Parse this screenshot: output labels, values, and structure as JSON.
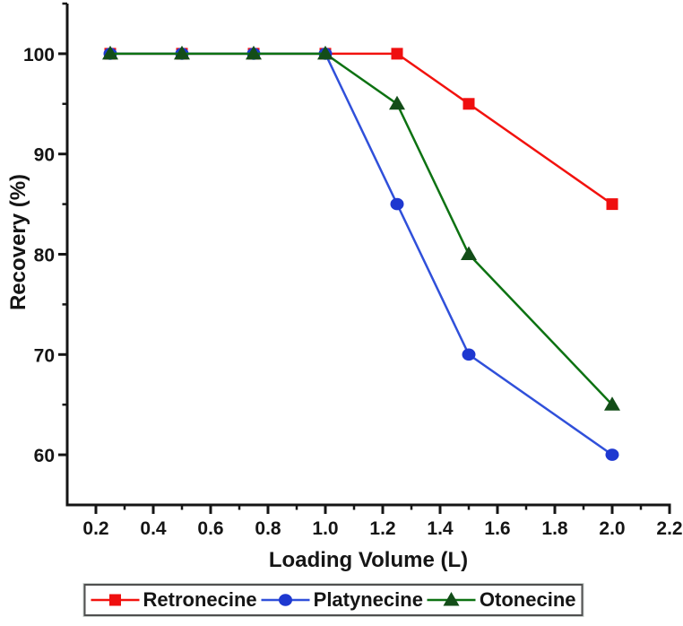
{
  "chart_data": {
    "type": "line",
    "title": "",
    "xlabel": "Loading Volume (L)",
    "ylabel": "Recovery (%)",
    "x": [
      0.25,
      0.5,
      0.75,
      1.0,
      1.25,
      1.5,
      2.0
    ],
    "series": [
      {
        "name": "Retronecine",
        "marker": "square",
        "line_color": "#f2120e",
        "marker_color": "#ef0f0f",
        "values": [
          100,
          100,
          100,
          100,
          100,
          95,
          85
        ]
      },
      {
        "name": "Platynecine",
        "marker": "circle",
        "line_color": "#3050da",
        "marker_color": "#1e38d0",
        "values": [
          100,
          100,
          100,
          100,
          85,
          70,
          60
        ]
      },
      {
        "name": "Otonecine",
        "marker": "triangle",
        "line_color": "#0d7212",
        "marker_color": "#134d18",
        "values": [
          100,
          100,
          100,
          100,
          95,
          80,
          65
        ]
      }
    ],
    "xlim": [
      0.1,
      2.2
    ],
    "ylim": [
      55,
      105
    ],
    "x_major_ticks": [
      0.2,
      0.4,
      0.6,
      0.8,
      1.0,
      1.2,
      1.4,
      1.6,
      1.8,
      2.0,
      2.2
    ],
    "x_tick_labels": [
      "0.2",
      "0.4",
      "0.6",
      "0.8",
      "1.0",
      "1.2",
      "1.4",
      "1.6",
      "1.8",
      "2.0",
      "2.2"
    ],
    "x_minor_ticks": [
      0.3,
      0.5,
      0.7,
      0.9,
      1.1,
      1.3,
      1.5,
      1.7,
      1.9,
      2.1
    ],
    "y_major_ticks": [
      60,
      70,
      80,
      90,
      100
    ],
    "y_tick_labels": [
      "60",
      "70",
      "80",
      "90",
      "100"
    ],
    "y_minor_ticks": [
      65,
      75,
      85,
      95,
      105
    ],
    "grid": false,
    "legend_position": "bottom",
    "axis_color": "#151515",
    "background": "#ffffff"
  }
}
